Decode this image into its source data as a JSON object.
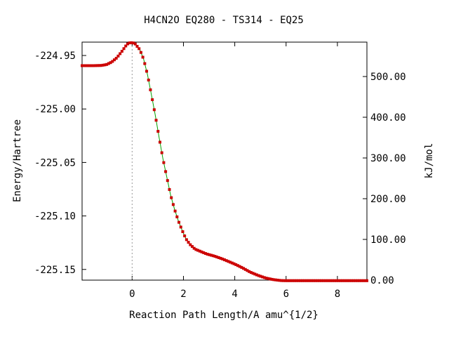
{
  "chart_data": {
    "type": "line",
    "title": "H4CN2O   EQ280 - TS314 - EQ25",
    "xlabel": "Reaction Path Length/A amu^{1/2}",
    "ylabel": "Energy/Hartree",
    "y2label": "kJ/mol",
    "xlim": [
      -1.95,
      9.15
    ],
    "ylim": [
      -225.16,
      -224.9375
    ],
    "y2lim": [
      0,
      584.5
    ],
    "x_ticks": [
      0,
      2,
      4,
      6,
      8
    ],
    "x_tick_labels": [
      "0",
      "2",
      "4",
      "6",
      "8"
    ],
    "y_ticks": [
      -224.95,
      -225.0,
      -225.05,
      -225.1,
      -225.15
    ],
    "y_tick_labels": [
      "-224.95",
      "-225.00",
      "-225.05",
      "-225.10",
      "-225.15"
    ],
    "y2_ticks": [
      0,
      100,
      200,
      300,
      400,
      500
    ],
    "y2_tick_labels": [
      "0.00",
      "100.00",
      "200.00",
      "300.00",
      "400.00",
      "500.00"
    ],
    "ts_marker_x": 0,
    "grid": false,
    "line_color": "#00a000",
    "marker_color": "#cc0000",
    "series": [
      {
        "x": [
          -1.95,
          -1.5,
          -1.2,
          -1.0,
          -0.8,
          -0.6,
          -0.4,
          -0.2,
          -0.1,
          0.0,
          0.1,
          0.3,
          0.45,
          0.6,
          0.75,
          0.9,
          1.05,
          1.2,
          1.35,
          1.5,
          1.65,
          1.8,
          1.95,
          2.1,
          2.25,
          2.45,
          2.7,
          2.9,
          3.2,
          3.5,
          3.7,
          4.0,
          4.3,
          4.6,
          4.9,
          5.2,
          5.5,
          5.8,
          6.0,
          6.5,
          7.0,
          8.0,
          9.15
        ],
        "y": [
          -224.9595,
          -224.9595,
          -224.9593,
          -224.9585,
          -224.9562,
          -224.9522,
          -224.9462,
          -224.9395,
          -224.9382,
          -224.938,
          -224.9386,
          -224.9445,
          -224.9535,
          -224.968,
          -224.9865,
          -225.0055,
          -225.0265,
          -225.0465,
          -225.0635,
          -225.0805,
          -225.0935,
          -225.1045,
          -225.1135,
          -225.1215,
          -225.1265,
          -225.131,
          -225.1335,
          -225.1355,
          -225.1375,
          -225.14,
          -225.142,
          -225.145,
          -225.1485,
          -225.1525,
          -225.1555,
          -225.158,
          -225.1595,
          -225.1604,
          -225.1605,
          -225.1605,
          -225.1605,
          -225.1605,
          -225.1605
        ]
      }
    ]
  }
}
